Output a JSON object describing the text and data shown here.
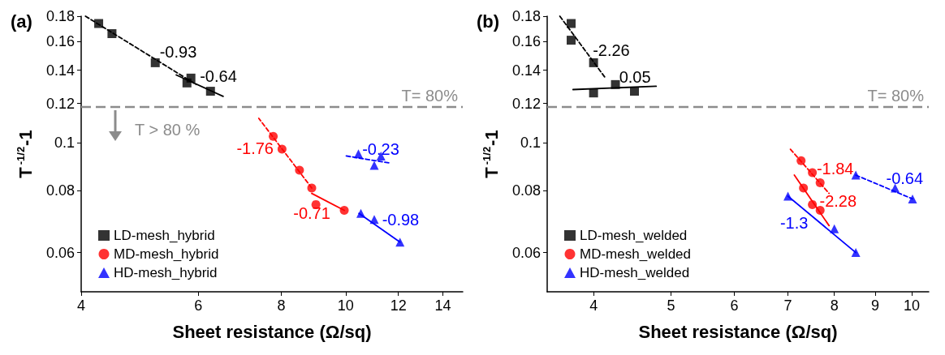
{
  "chart_data": [
    {
      "title": "(a)",
      "type": "scatter",
      "xlabel": "Sheet resistance (Ω/sq)",
      "ylabel": "T$^{-1/2}$-1",
      "log": "xy",
      "xlim": [
        4,
        15
      ],
      "ylim": [
        0.05,
        0.18
      ],
      "xticks": [
        4,
        6,
        8,
        10,
        12,
        14
      ],
      "yticks": [
        0.06,
        0.08,
        0.1,
        0.12,
        0.14,
        0.16,
        0.18
      ],
      "grid": false,
      "legend": "bottom left",
      "ref_lines": [
        {
          "axis": "y",
          "value": 0.118,
          "color": "#8c8c8c",
          "line_style": "dashed"
        }
      ],
      "annotations": [
        "T= 80%",
        "T > 80 %"
      ],
      "series": [
        {
          "name": "LD-mesh_hybrid",
          "type": "scatter",
          "marker": "square",
          "color": "#000000",
          "x": [
            4.25,
            4.45,
            5.17,
            5.77,
            5.85,
            6.26
          ],
          "values": [
            0.174,
            0.166,
            0.145,
            0.132,
            0.135,
            0.127
          ]
        },
        {
          "name": "MD-mesh_hybrid",
          "type": "scatter",
          "marker": "circle",
          "color": "#ff0000",
          "x": [
            7.78,
            8.02,
            8.52,
            8.89,
            9.02,
            9.95
          ],
          "values": [
            0.103,
            0.097,
            0.088,
            0.081,
            0.075,
            0.073
          ]
        },
        {
          "name": "HD-mesh_hybrid",
          "type": "scatter",
          "marker": "triangle",
          "color": "#0000ff",
          "x": [
            10.45,
            11.04,
            11.3,
            10.54,
            11.04,
            12.07
          ],
          "values": [
            0.095,
            0.09,
            0.094,
            0.072,
            0.07,
            0.063
          ]
        },
        {
          "name": "-0.93",
          "type": "line",
          "line_style": "dashed",
          "marker": "none",
          "color": "#000000",
          "x": [
            4.06,
            5.96
          ],
          "values": [
            0.18,
            0.131
          ]
        },
        {
          "name": "-0.64",
          "type": "line",
          "line_style": "solid",
          "marker": "none",
          "color": "#000000",
          "x": [
            5.56,
            6.54
          ],
          "values": [
            0.137,
            0.124
          ]
        },
        {
          "name": "-1.76",
          "type": "line",
          "line_style": "dashed",
          "marker": "none",
          "color": "#ff0000",
          "x": [
            8.89,
            7.4
          ],
          "values": [
            0.081,
            0.112
          ]
        },
        {
          "name": "-0.71",
          "type": "line",
          "line_style": "solid",
          "marker": "none",
          "color": "#ff0000",
          "x": [
            9.95,
            8.89
          ],
          "values": [
            0.073,
            0.079
          ]
        },
        {
          "name": "-0.23",
          "type": "line",
          "line_style": "dashed",
          "marker": "none",
          "color": "#0000ff",
          "x": [
            10.02,
            11.64
          ],
          "values": [
            0.094,
            0.091
          ]
        },
        {
          "name": "-0.98",
          "type": "line",
          "line_style": "solid",
          "marker": "none",
          "color": "#0000ff",
          "x": [
            10.47,
            12.07
          ],
          "values": [
            0.072,
            0.063
          ]
        }
      ]
    },
    {
      "title": "(b)",
      "type": "scatter",
      "xlabel": "Sheet resistance (Ω/sq)",
      "ylabel": "T$^{-1/2}$-1",
      "log": "xy",
      "xlim": [
        3.5,
        10.5
      ],
      "ylim": [
        0.05,
        0.18
      ],
      "xticks": [
        4,
        5,
        6,
        7,
        8,
        9,
        10
      ],
      "yticks": [
        0.06,
        0.08,
        0.1,
        0.12,
        0.14,
        0.16,
        0.18
      ],
      "grid": false,
      "legend": "bottom left",
      "ref_lines": [
        {
          "axis": "y",
          "value": 0.118,
          "color": "#8c8c8c",
          "line_style": "dashed"
        }
      ],
      "annotations": [
        "T= 80%"
      ],
      "series": [
        {
          "name": "LD-mesh_welded",
          "type": "scatter",
          "marker": "square",
          "color": "#000000",
          "x": [
            3.75,
            3.75,
            4.0,
            4.26,
            4.0,
            4.5
          ],
          "values": [
            0.174,
            0.161,
            0.145,
            0.131,
            0.126,
            0.127
          ]
        },
        {
          "name": "MD-mesh_welded",
          "type": "scatter",
          "marker": "circle",
          "color": "#ff0000",
          "x": [
            7.27,
            7.51,
            7.68,
            7.32,
            7.51,
            7.68
          ],
          "values": [
            0.092,
            0.087,
            0.083,
            0.081,
            0.075,
            0.073
          ]
        },
        {
          "name": "HD-mesh_welded",
          "type": "scatter",
          "marker": "triangle",
          "color": "#0000ff",
          "x": [
            7.0,
            8.0,
            8.51,
            8.51,
            9.53,
            10.02
          ],
          "values": [
            0.078,
            0.067,
            0.06,
            0.086,
            0.081,
            0.077
          ]
        },
        {
          "name": "-2.26",
          "type": "line",
          "line_style": "dashed",
          "marker": "none",
          "color": "#000000",
          "x": [
            3.63,
            4.14
          ],
          "values": [
            0.18,
            0.135
          ]
        },
        {
          "name": "0.05",
          "type": "line",
          "line_style": "solid",
          "marker": "none",
          "color": "#000000",
          "x": [
            3.77,
            4.79
          ],
          "values": [
            0.128,
            0.13
          ]
        },
        {
          "name": "-1.84",
          "type": "line",
          "line_style": "dashed",
          "marker": "none",
          "color": "#ff0000",
          "x": [
            7.05,
            7.88
          ],
          "values": [
            0.097,
            0.079
          ]
        },
        {
          "name": "-2.28",
          "type": "line",
          "line_style": "solid",
          "marker": "none",
          "color": "#ff0000",
          "x": [
            7.13,
            7.88
          ],
          "values": [
            0.086,
            0.068
          ]
        },
        {
          "name": "-1.3",
          "type": "line",
          "line_style": "solid",
          "marker": "none",
          "color": "#0000ff",
          "x": [
            8.51,
            7.0
          ],
          "values": [
            0.06,
            0.078
          ]
        },
        {
          "name": "-0.64",
          "type": "line",
          "line_style": "dashed",
          "marker": "none",
          "color": "#0000ff",
          "x": [
            8.51,
            10.02
          ],
          "values": [
            0.086,
            0.077
          ]
        }
      ]
    }
  ]
}
